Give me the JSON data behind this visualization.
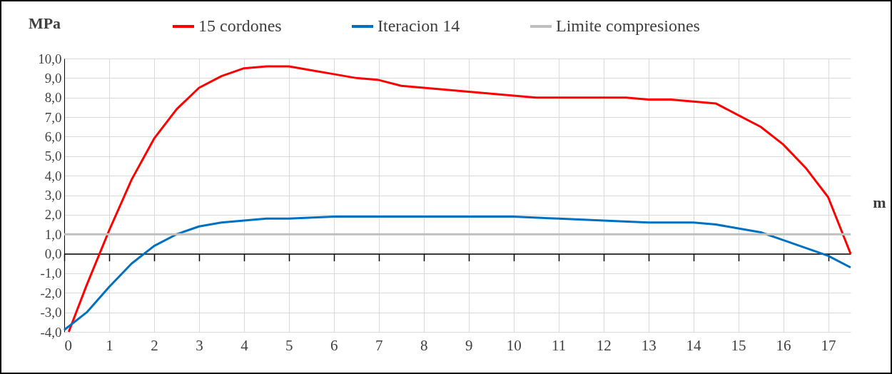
{
  "chart_data": {
    "type": "line",
    "xlabel": "m",
    "ylabel": "MPa",
    "legend": "top",
    "grid": true,
    "marker": "none",
    "line_style": "solid",
    "xlim": [
      0,
      17.5
    ],
    "xticks": [
      0,
      1,
      2,
      3,
      4,
      5,
      6,
      7,
      8,
      9,
      10,
      11,
      12,
      13,
      14,
      15,
      16,
      17
    ],
    "ylim": [
      -4,
      10
    ],
    "yticks": [
      {
        "value": -4,
        "label": "-4,0"
      },
      {
        "value": -3,
        "label": "-3,0"
      },
      {
        "value": -2,
        "label": "-2,0"
      },
      {
        "value": -1,
        "label": "-1,0"
      },
      {
        "value": 0,
        "label": "0,0"
      },
      {
        "value": 1,
        "label": "1,0"
      },
      {
        "value": 2,
        "label": "2,0"
      },
      {
        "value": 3,
        "label": "3,0"
      },
      {
        "value": 4,
        "label": "4,0"
      },
      {
        "value": 5,
        "label": "5,0"
      },
      {
        "value": 6,
        "label": "6,0"
      },
      {
        "value": 7,
        "label": "7,0"
      },
      {
        "value": 8,
        "label": "8,0"
      },
      {
        "value": 9,
        "label": "9,0"
      },
      {
        "value": 10,
        "label": "10,0"
      }
    ],
    "series": [
      {
        "name": "15 cordones",
        "color": "#ff0000",
        "x": [
          0.1,
          0.5,
          1,
          1.5,
          2,
          2.5,
          3,
          3.5,
          4,
          4.5,
          5,
          5.5,
          6,
          6.5,
          7,
          7.5,
          8,
          8.5,
          9,
          9.5,
          10,
          10.5,
          11,
          11.5,
          12,
          12.5,
          13,
          13.5,
          14,
          14.5,
          15,
          15.5,
          16,
          16.5,
          17,
          17.5
        ],
        "values": [
          -4.0,
          -1.6,
          1.2,
          3.8,
          5.9,
          7.4,
          8.5,
          9.1,
          9.5,
          9.6,
          9.6,
          9.4,
          9.2,
          9.0,
          8.9,
          8.6,
          8.5,
          8.4,
          8.3,
          8.2,
          8.1,
          8.0,
          8.0,
          8.0,
          8.0,
          8.0,
          7.9,
          7.9,
          7.8,
          7.7,
          7.1,
          6.5,
          5.6,
          4.4,
          2.9,
          0.0
        ]
      },
      {
        "name": "Iteracion 14",
        "color": "#0070c0",
        "x": [
          0,
          0.5,
          1,
          1.5,
          2,
          2.5,
          3,
          3.5,
          4,
          4.5,
          5,
          6,
          7,
          8,
          9,
          10,
          11,
          12,
          13,
          14,
          14.5,
          15,
          15.5,
          16,
          16.5,
          17,
          17.5
        ],
        "values": [
          -3.9,
          -3.0,
          -1.7,
          -0.5,
          0.4,
          1.0,
          1.4,
          1.6,
          1.7,
          1.8,
          1.8,
          1.9,
          1.9,
          1.9,
          1.9,
          1.9,
          1.8,
          1.7,
          1.6,
          1.6,
          1.5,
          1.3,
          1.1,
          0.7,
          0.3,
          -0.1,
          -0.7
        ]
      },
      {
        "name": "Limite compresiones",
        "color": "#bfbfbf",
        "x": [
          0,
          17.5
        ],
        "values": [
          1.0,
          1.0
        ]
      }
    ]
  }
}
